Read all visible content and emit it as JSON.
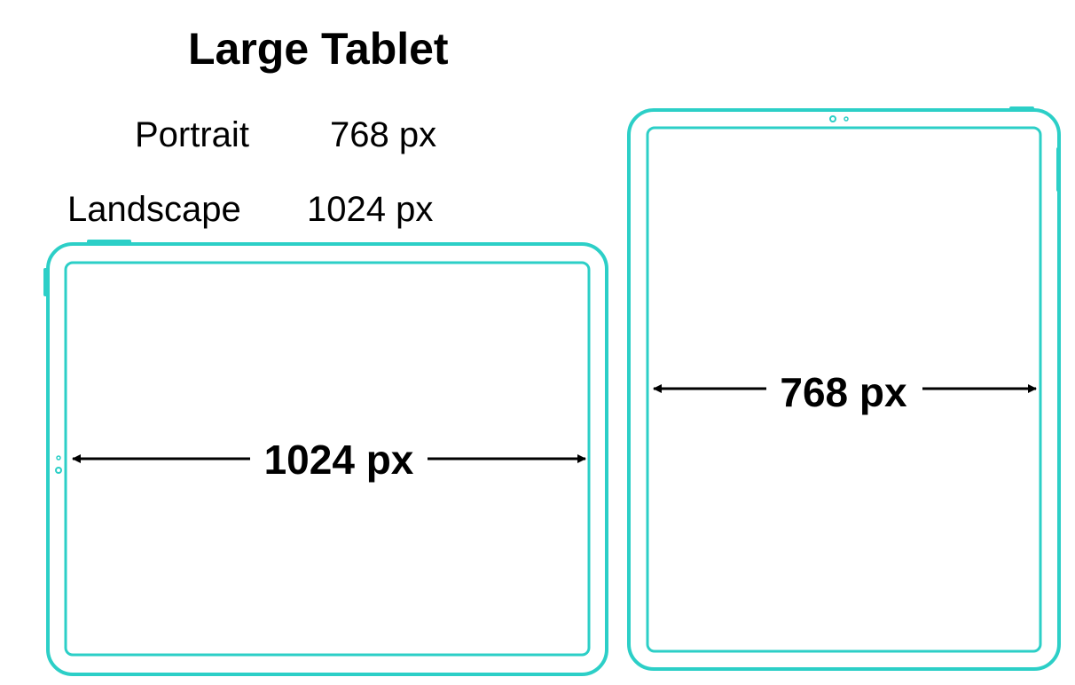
{
  "title": "Large Tablet",
  "specs": [
    {
      "label": "Portrait",
      "value": "768 px"
    },
    {
      "label": "Landscape",
      "value": "1024 px"
    }
  ],
  "landscape_tablet": {
    "dimension_label": "1024 px"
  },
  "portrait_tablet": {
    "dimension_label": "768 px"
  },
  "colors": {
    "device_outline": "#2ccfc7",
    "text": "#000000",
    "background": "#ffffff"
  }
}
